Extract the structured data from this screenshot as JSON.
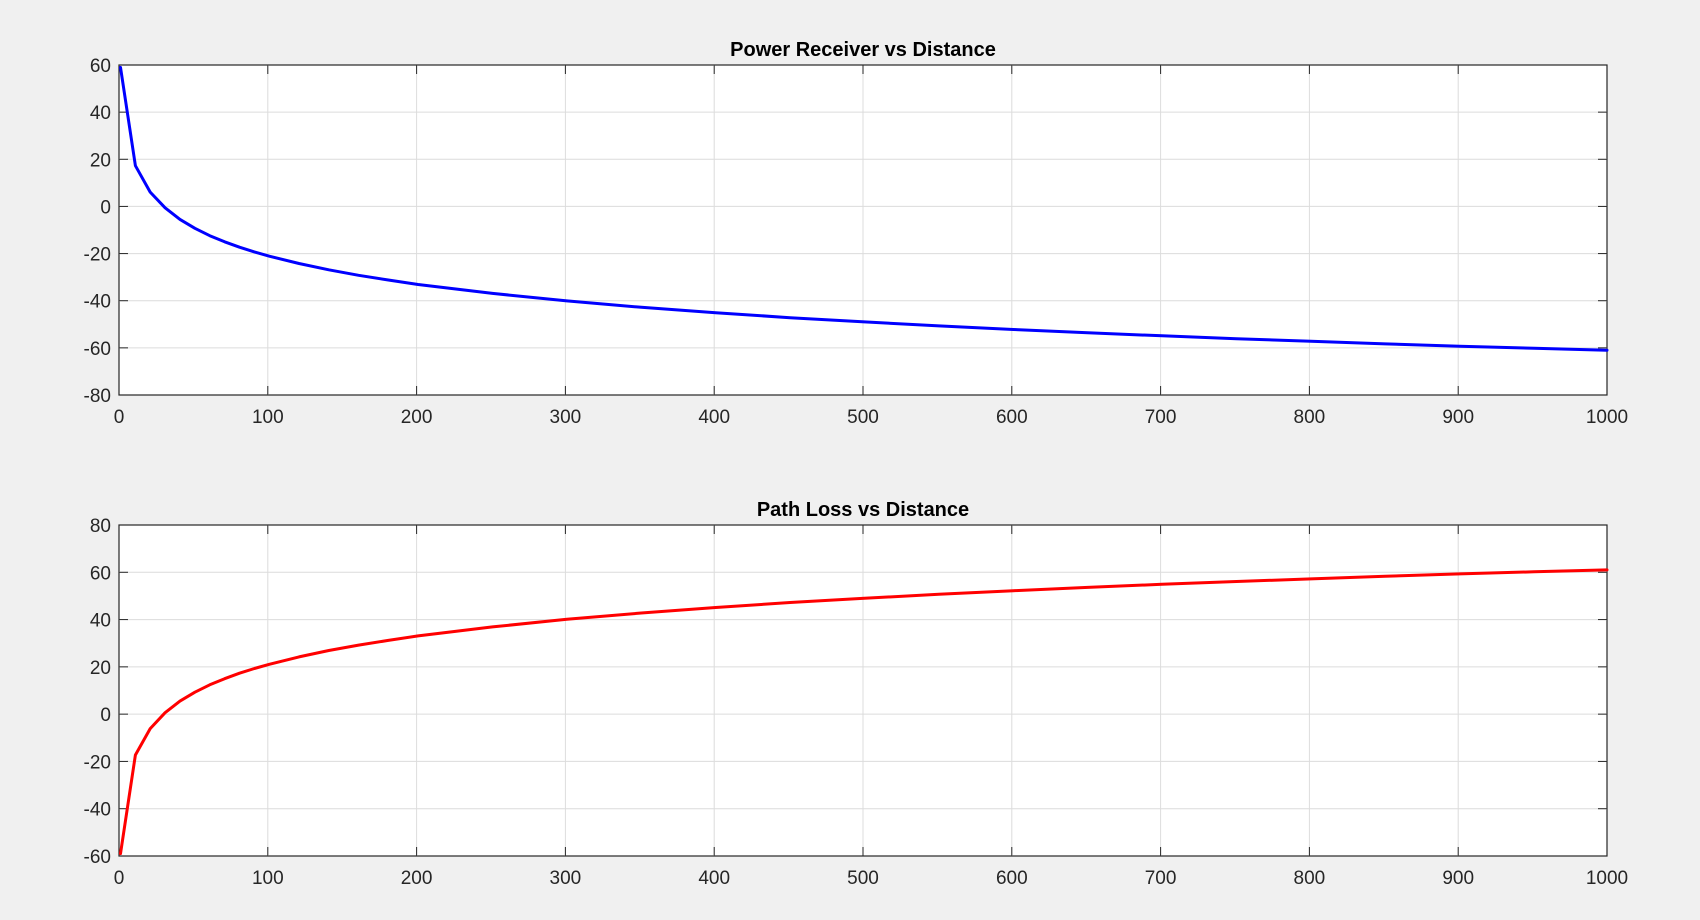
{
  "chart_data": [
    {
      "type": "line",
      "title": "Power Receiver vs Distance",
      "xlabel": "",
      "ylabel": "",
      "xlim": [
        0,
        1000
      ],
      "ylim": [
        -80,
        60
      ],
      "grid": true,
      "xticks": [
        0,
        100,
        200,
        300,
        400,
        500,
        600,
        700,
        800,
        900,
        1000
      ],
      "yticks": [
        -80,
        -60,
        -40,
        -20,
        0,
        20,
        40,
        60
      ],
      "series": [
        {
          "name": "Power Receiver",
          "color": "#0000ff",
          "x": [
            1,
            11,
            21,
            31,
            41,
            51,
            61,
            71,
            81,
            91,
            101,
            121,
            141,
            161,
            181,
            201,
            251,
            301,
            351,
            401,
            451,
            501,
            551,
            601,
            651,
            701,
            751,
            801,
            851,
            901,
            951,
            1000
          ],
          "values": [
            59.0,
            17.3,
            6.1,
            -0.6,
            -5.5,
            -9.3,
            -12.4,
            -15.0,
            -17.3,
            -19.3,
            -21.1,
            -24.2,
            -26.9,
            -29.2,
            -31.2,
            -33.1,
            -36.9,
            -40.1,
            -42.8,
            -45.1,
            -47.2,
            -49.0,
            -50.7,
            -52.2,
            -53.6,
            -54.9,
            -56.1,
            -57.2,
            -58.3,
            -59.3,
            -60.2,
            -61.0
          ]
        }
      ]
    },
    {
      "type": "line",
      "title": "Path Loss vs Distance",
      "xlabel": "",
      "ylabel": "",
      "xlim": [
        0,
        1000
      ],
      "ylim": [
        -60,
        80
      ],
      "grid": true,
      "xticks": [
        0,
        100,
        200,
        300,
        400,
        500,
        600,
        700,
        800,
        900,
        1000
      ],
      "yticks": [
        -60,
        -40,
        -20,
        0,
        20,
        40,
        60,
        80
      ],
      "series": [
        {
          "name": "Path Loss",
          "color": "#ff0000",
          "x": [
            1,
            11,
            21,
            31,
            41,
            51,
            61,
            71,
            81,
            91,
            101,
            121,
            141,
            161,
            181,
            201,
            251,
            301,
            351,
            401,
            451,
            501,
            551,
            601,
            651,
            701,
            751,
            801,
            851,
            901,
            951,
            1000
          ],
          "values": [
            -59.0,
            -17.3,
            -6.1,
            0.6,
            5.5,
            9.3,
            12.4,
            15.0,
            17.3,
            19.3,
            21.1,
            24.2,
            26.9,
            29.2,
            31.2,
            33.1,
            36.9,
            40.1,
            42.8,
            45.1,
            47.2,
            49.0,
            50.7,
            52.2,
            53.6,
            54.9,
            56.1,
            57.2,
            58.3,
            59.3,
            60.2,
            61.0
          ]
        }
      ]
    }
  ]
}
